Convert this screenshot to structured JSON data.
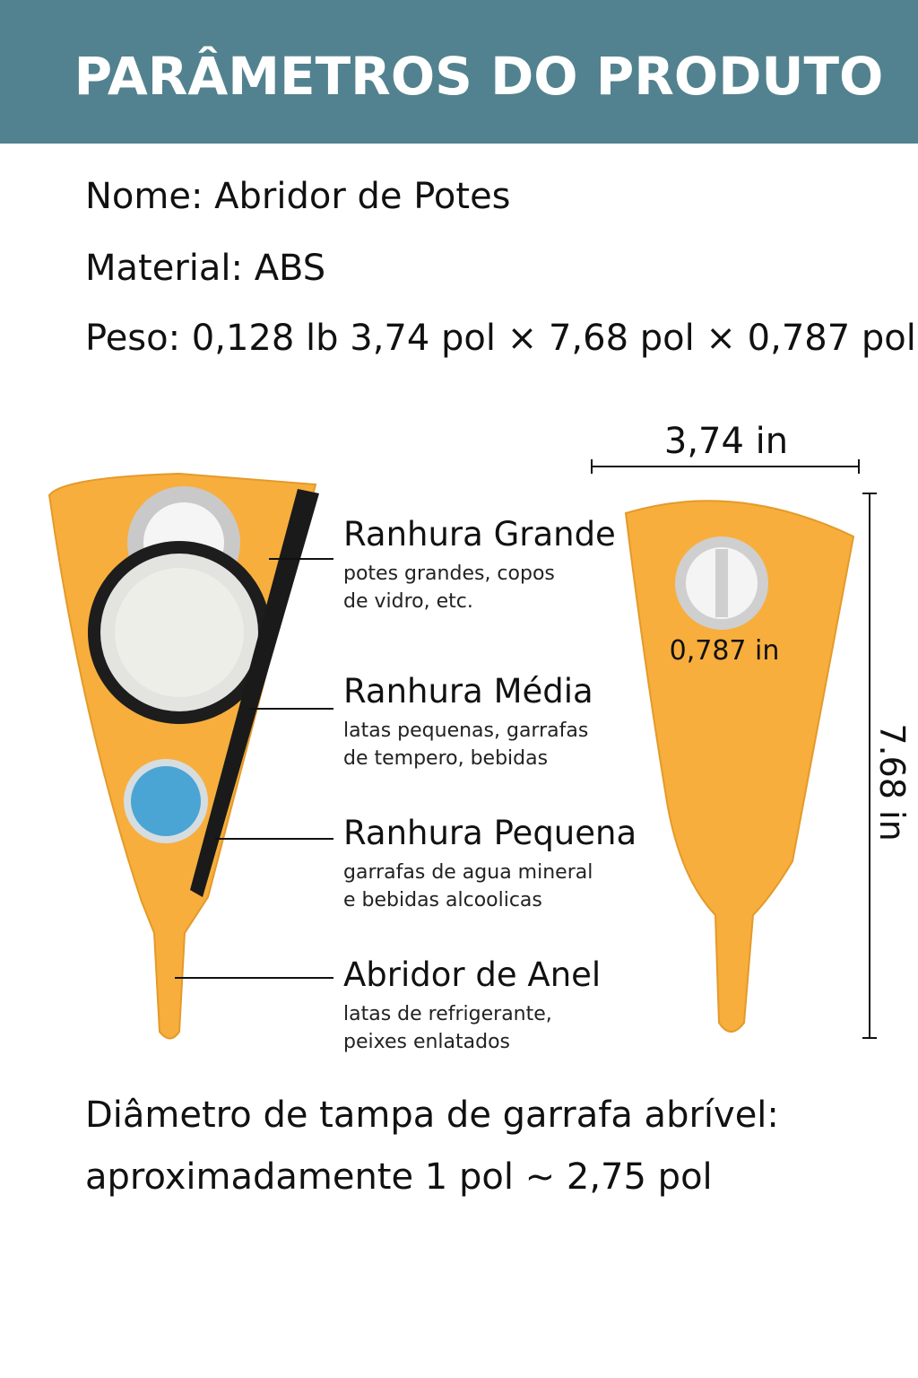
{
  "header": {
    "title": "PARÂMETROS DO PRODUTO"
  },
  "specs": [
    "Nome: Abridor de Potes",
    "Material: ABS",
    "Peso: 0,128 lb  3,74 pol × 7,68 pol × 0,787 pol"
  ],
  "features": [
    {
      "title": "Ranhura Grande",
      "lines": [
        "potes grandes, copos",
        "de vidro, etc."
      ]
    },
    {
      "title": "Ranhura Média",
      "lines": [
        "latas pequenas, garrafas",
        "de tempero, bebidas"
      ]
    },
    {
      "title": "Ranhura Pequena",
      "lines": [
        "garrafas de agua mineral",
        "e bebidas alcoolicas"
      ]
    },
    {
      "title": "Abridor de Anel",
      "lines": [
        "latas de refrigerante,",
        "peixes enlatados"
      ]
    }
  ],
  "dimensions": {
    "width": "3,74 in",
    "height": "7.68 in",
    "thickness": "0,787 in"
  },
  "footer": [
    "Diâmetro de tampa de garrafa abrível:",
    "aproximadamente 1 pol ~ 2,75 pol"
  ]
}
